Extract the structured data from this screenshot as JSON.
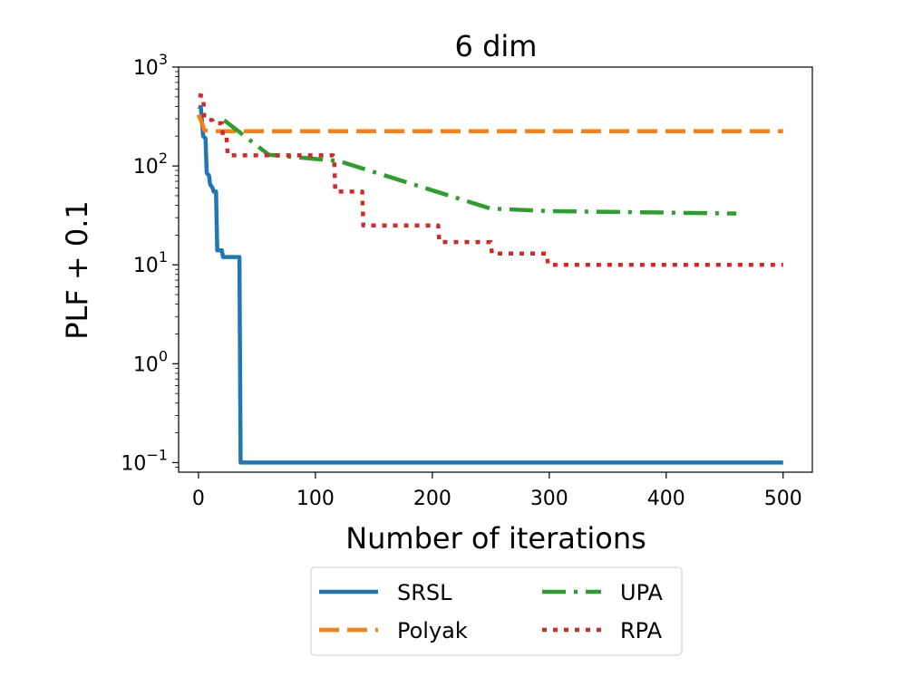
{
  "chart_data": {
    "type": "line",
    "title": "6 dim",
    "xlabel": "Number of iterations",
    "ylabel": "PLF + 0.1",
    "yscale": "log",
    "xlim": [
      -17,
      525
    ],
    "ylim": [
      0.08,
      1000
    ],
    "xticks": [
      0,
      100,
      200,
      300,
      400,
      500
    ],
    "xtick_labels": [
      "0",
      "100",
      "200",
      "300",
      "400",
      "500"
    ],
    "yticks": [
      0.1,
      1,
      10,
      100,
      1000
    ],
    "ytick_labels": [
      {
        "base": "10",
        "exp": "−1"
      },
      {
        "base": "10",
        "exp": "0"
      },
      {
        "base": "10",
        "exp": "1"
      },
      {
        "base": "10",
        "exp": "2"
      },
      {
        "base": "10",
        "exp": "3"
      }
    ],
    "grid": false,
    "legend": "below plot, 2 columns",
    "series": [
      {
        "name": "SRSL",
        "color": "#1f77b4",
        "style": "solid",
        "points": [
          [
            0,
            400
          ],
          [
            2,
            390
          ],
          [
            4,
            200
          ],
          [
            6,
            190
          ],
          [
            7,
            85
          ],
          [
            9,
            80
          ],
          [
            10,
            65
          ],
          [
            12,
            60
          ],
          [
            13,
            55
          ],
          [
            15,
            55
          ],
          [
            16,
            14
          ],
          [
            20,
            14
          ],
          [
            21,
            12
          ],
          [
            34,
            12
          ],
          [
            35,
            12
          ],
          [
            36,
            0.1
          ],
          [
            500,
            0.1
          ]
        ]
      },
      {
        "name": "Polyak",
        "color": "#ff7f0e",
        "style": "dashed",
        "points": [
          [
            0,
            330
          ],
          [
            3,
            270
          ],
          [
            5,
            230
          ],
          [
            10,
            225
          ],
          [
            500,
            225
          ]
        ]
      },
      {
        "name": "UPA",
        "color": "#2ca02c",
        "style": "dashdot",
        "points": [
          [
            22,
            290
          ],
          [
            60,
            130
          ],
          [
            120,
            112
          ],
          [
            250,
            37
          ],
          [
            300,
            35
          ],
          [
            460,
            33
          ]
        ]
      },
      {
        "name": "RPA",
        "color": "#d62728",
        "style": "dotted",
        "points": [
          [
            0,
            520
          ],
          [
            4,
            510
          ],
          [
            5,
            300
          ],
          [
            12,
            290
          ],
          [
            13,
            270
          ],
          [
            20,
            270
          ],
          [
            21,
            195
          ],
          [
            24,
            195
          ],
          [
            25,
            128
          ],
          [
            115,
            128
          ],
          [
            116,
            125
          ],
          [
            117,
            55
          ],
          [
            140,
            55
          ],
          [
            141,
            25
          ],
          [
            205,
            25
          ],
          [
            206,
            17
          ],
          [
            250,
            17
          ],
          [
            251,
            13
          ],
          [
            298,
            13
          ],
          [
            299,
            10
          ],
          [
            500,
            10
          ]
        ]
      }
    ]
  }
}
